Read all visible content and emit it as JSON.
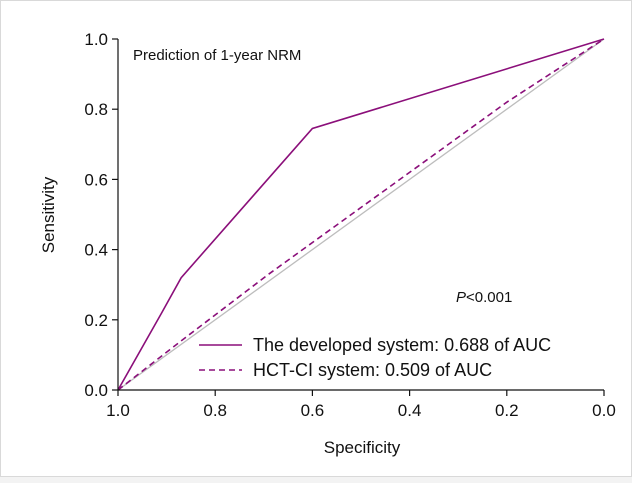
{
  "chart_data": {
    "type": "line",
    "title": "",
    "annotation": "Prediction of 1-year NRM",
    "xlabel": "Specificity",
    "ylabel": "Sensitivity",
    "x_reversed": true,
    "xlim": [
      1.0,
      0.0
    ],
    "ylim": [
      0.0,
      1.0
    ],
    "x_ticks": [
      "1.0",
      "0.8",
      "0.6",
      "0.4",
      "0.2",
      "0.0"
    ],
    "y_ticks": [
      "0.0",
      "0.2",
      "0.4",
      "0.6",
      "0.8",
      "1.0"
    ],
    "grid": false,
    "legend_position": "bottom-right",
    "p_value": {
      "prefix": "P",
      "text": "<0.001"
    },
    "colors": {
      "series": "#8b0f7a",
      "reference": "#bdbdbd",
      "axis": "#111111"
    },
    "series": [
      {
        "name": "The developed system: 0.688 of AUC",
        "style": "solid",
        "x": [
          1.0,
          0.91,
          0.87,
          0.6,
          0.0
        ],
        "y": [
          0.0,
          0.22,
          0.32,
          0.745,
          1.0
        ]
      },
      {
        "name": "HCT-CI system: 0.509 of AUC",
        "style": "dashed",
        "x": [
          1.0,
          0.87,
          0.69,
          0.2,
          0.0
        ],
        "y": [
          0.0,
          0.14,
          0.33,
          0.82,
          1.0
        ]
      }
    ],
    "reference_line": {
      "x": [
        1.0,
        0.0
      ],
      "y": [
        0.0,
        1.0
      ]
    }
  }
}
